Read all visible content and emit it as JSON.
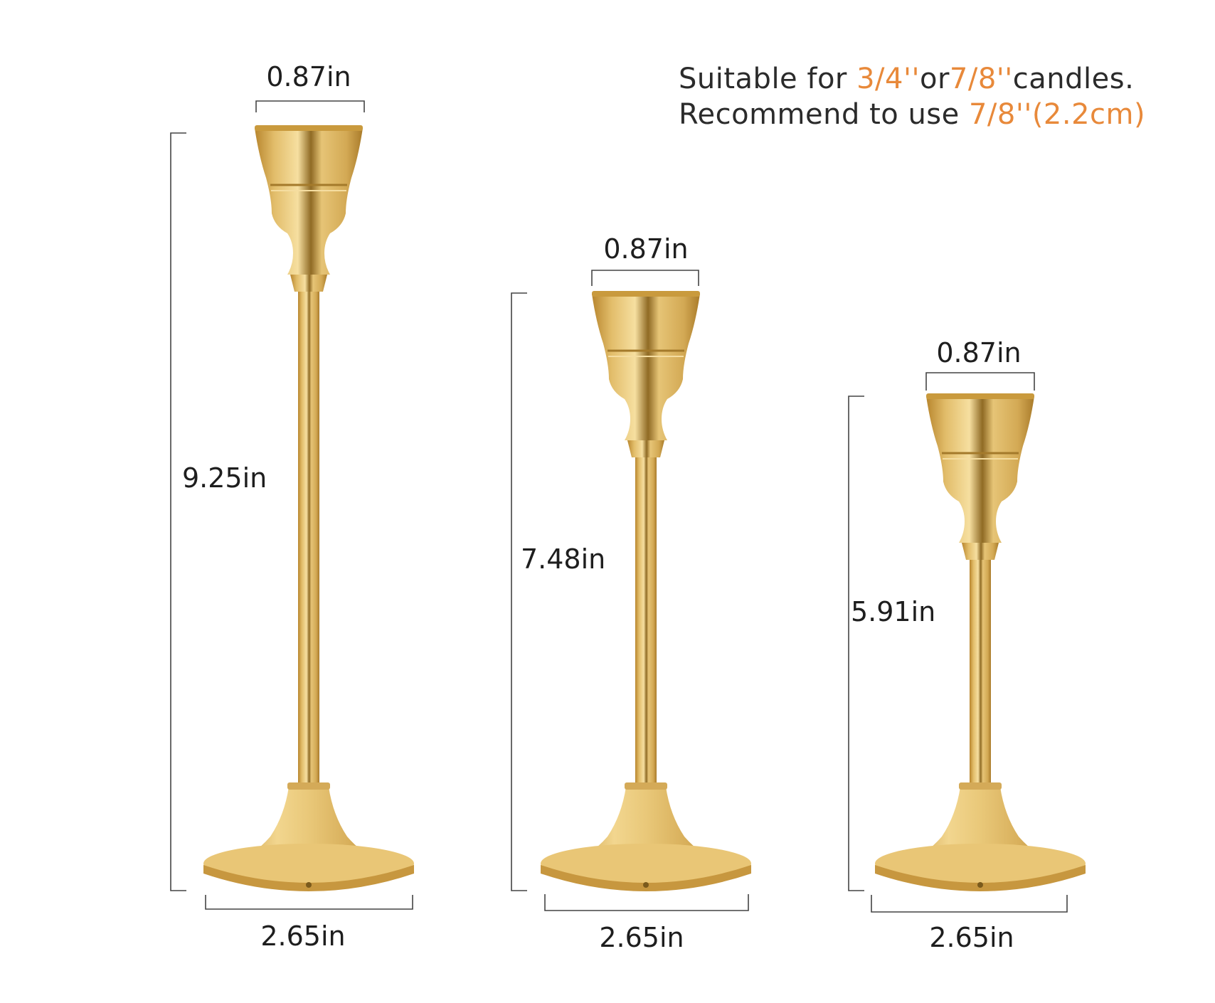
{
  "note": {
    "line1": {
      "a": "Suitable for ",
      "b": "3/4''",
      "c": "or",
      "d": "7/8''",
      "e": "candles."
    },
    "line2": {
      "a": "Recommend to use ",
      "b": "7/8''(2.2cm)"
    },
    "highlight_color": "#e8893a"
  },
  "holders": [
    {
      "top_width": "0.87in",
      "height": "9.25in",
      "base_width": "2.65in"
    },
    {
      "top_width": "0.87in",
      "height": "7.48in",
      "base_width": "2.65in"
    },
    {
      "top_width": "0.87in",
      "height": "5.91in",
      "base_width": "2.65in"
    }
  ],
  "colors": {
    "gold_light": "#f1d58c",
    "gold_mid": "#d6ad55",
    "gold_dark": "#8f6a24",
    "line": "#444444"
  }
}
